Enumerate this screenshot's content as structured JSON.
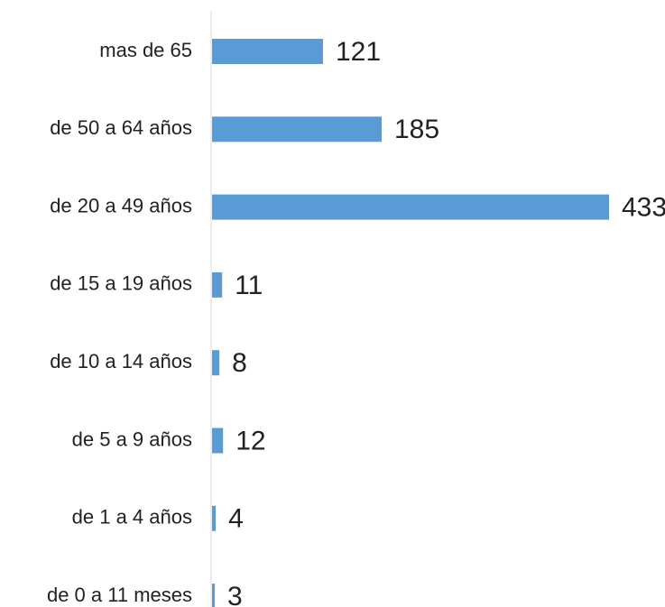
{
  "chart_data": {
    "type": "bar",
    "orientation": "horizontal",
    "categories": [
      "mas de 65",
      "de 50 a 64 años",
      "de 20 a 49 años",
      "de 15 a 19 años",
      "de 10 a 14 años",
      "de 5 a 9 años",
      "de 1 a 4 años",
      "de 0 a 11 meses"
    ],
    "values": [
      121,
      185,
      433,
      11,
      8,
      12,
      4,
      3
    ],
    "value_labels": [
      "121",
      "185",
      "433",
      "11",
      "8",
      "12",
      "4",
      "3"
    ],
    "xlim": [
      0,
      433
    ],
    "grid": false,
    "legend": "none",
    "bar_color": "#5b9bd5",
    "axis_color": "#d9d9d9"
  }
}
